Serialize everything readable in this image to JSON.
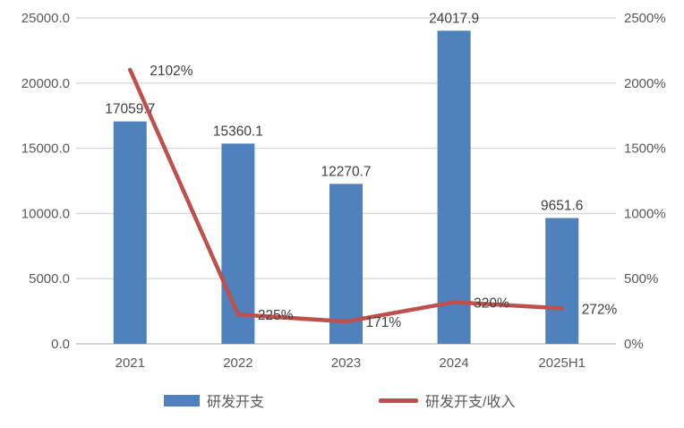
{
  "chart_data": {
    "type": "bar+line combo (dual axis)",
    "title": "",
    "categories": [
      "2021",
      "2022",
      "2023",
      "2024",
      "2025H1"
    ],
    "series": [
      {
        "name": "研发开支",
        "type": "bar",
        "axis": "left",
        "color": "#4F81BD",
        "values": [
          17059.7,
          15360.1,
          12270.7,
          24017.9,
          9651.6
        ],
        "labels": [
          "17059.7",
          "15360.1",
          "12270.7",
          "24017.9",
          "9651.6"
        ]
      },
      {
        "name": "研发开支/收入",
        "type": "line",
        "axis": "right",
        "color": "#C0504D",
        "values": [
          2102,
          225,
          171,
          320,
          272
        ],
        "labels": [
          "2102%",
          "225%",
          "171%",
          "320%",
          "272%"
        ]
      }
    ],
    "y_left": {
      "min": 0,
      "max": 25000,
      "ticks": [
        "0.0",
        "5000.0",
        "10000.0",
        "15000.0",
        "20000.0",
        "25000.0"
      ]
    },
    "y_right": {
      "min": 0,
      "max": 2500,
      "ticks": [
        "0%",
        "500%",
        "1000%",
        "1500%",
        "2000%",
        "2500%"
      ]
    },
    "grid": true,
    "legend_position": "bottom",
    "colors": {
      "gridline": "#D9D9D9",
      "axis_line": "#C9CBCD",
      "tick_text": "#595959",
      "data_label_text": "#404040",
      "background": "#FFFFFF"
    }
  }
}
